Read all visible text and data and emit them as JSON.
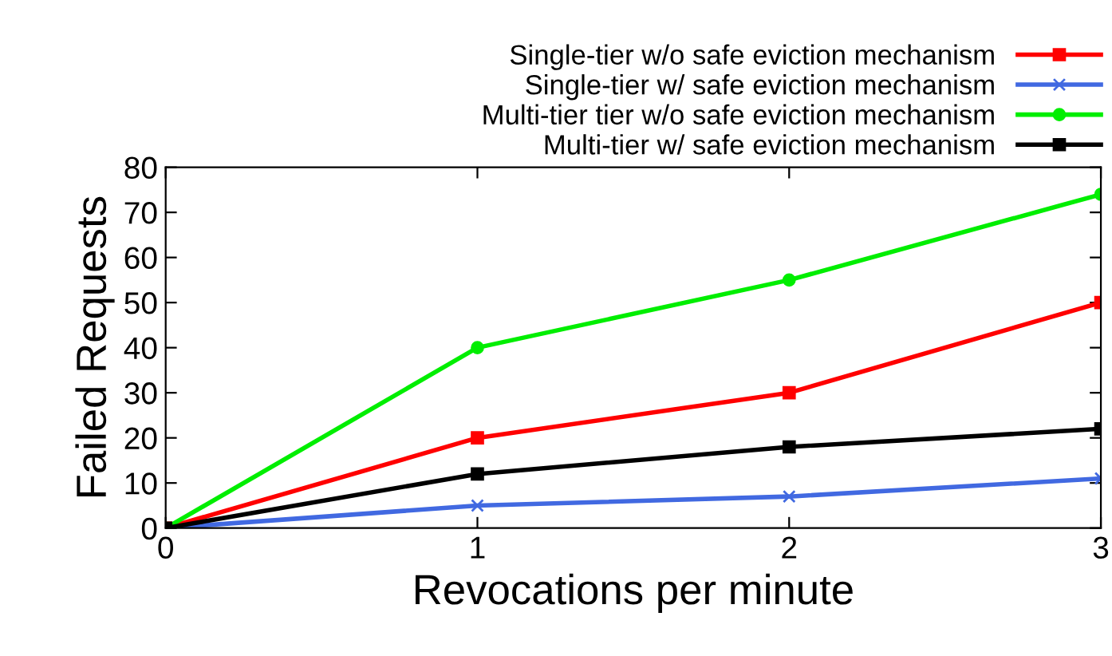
{
  "chart_data": {
    "type": "line",
    "xlabel": "Revocations per minute",
    "ylabel": "Failed Requests",
    "x": [
      0,
      1,
      2,
      3
    ],
    "series": [
      {
        "name": "Single-tier w/o safe eviction mechanism",
        "color": "#ff0000",
        "marker": "square",
        "values": [
          0,
          20,
          30,
          50
        ]
      },
      {
        "name": "Single-tier w/ safe eviction mechanism",
        "color": "#4169e1",
        "marker": "cross",
        "values": [
          0,
          5,
          7,
          11
        ]
      },
      {
        "name": "Multi-tier tier w/o safe eviction mechanism",
        "color": "#00ee00",
        "marker": "circle",
        "values": [
          0,
          40,
          55,
          74
        ]
      },
      {
        "name": "Multi-tier w/ safe eviction mechanism",
        "color": "#000000",
        "marker": "square",
        "values": [
          0,
          12,
          18,
          22
        ]
      }
    ],
    "xlim": [
      0,
      3
    ],
    "xticks": [
      0,
      1,
      2,
      3
    ],
    "ylim": [
      0,
      80
    ],
    "yticks": [
      0,
      10,
      20,
      30,
      40,
      50,
      60,
      70,
      80
    ],
    "legend": "top right",
    "grid": false
  }
}
